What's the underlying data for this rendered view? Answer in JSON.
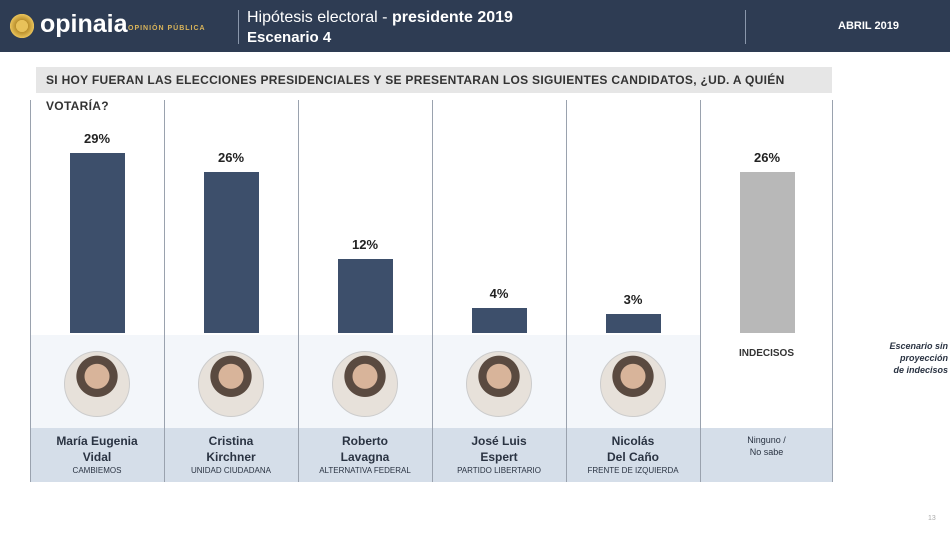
{
  "header": {
    "brand": "opinaia",
    "brand_sub": "OPINIÓN PÚBLICA",
    "title_light": "Hipótesis electoral - ",
    "title_bold": "presidente 2019",
    "subtitle": "Escenario 4",
    "date": "ABRIL 2019"
  },
  "question": "SI HOY FUERAN LAS ELECCIONES PRESIDENCIALES Y SE PRESENTARAN LOS SIGUIENTES CANDIDATOS, ¿UD. A QUIÉN VOTARÍA?",
  "chart_data": {
    "type": "bar",
    "title": "SI HOY FUERAN LAS ELECCIONES PRESIDENCIALES Y SE PRESENTARAN LOS SIGUIENTES CANDIDATOS, ¿UD. A QUIÉN VOTARÍA?",
    "categories": [
      "María Eugenia Vidal",
      "Cristina Kirchner",
      "Roberto Lavagna",
      "José Luis Espert",
      "Nicolás Del Caño",
      "Indecisos"
    ],
    "values": [
      29,
      26,
      12,
      4,
      3,
      26
    ],
    "unit": "%",
    "ylim": [
      0,
      30
    ],
    "labels": [
      "29%",
      "26%",
      "12%",
      "4%",
      "3%",
      "26%"
    ],
    "colors": [
      "#3d4f6b",
      "#3d4f6b",
      "#3d4f6b",
      "#3d4f6b",
      "#3d4f6b",
      "#b8b8b8"
    ]
  },
  "candidates": [
    {
      "first": "María Eugenia",
      "last": "Vidal",
      "party": "CAMBIEMOS"
    },
    {
      "first": "Cristina",
      "last": "Kirchner",
      "party": "UNIDAD CIUDADANA"
    },
    {
      "first": "Roberto",
      "last": "Lavagna",
      "party": "ALTERNATIVA FEDERAL"
    },
    {
      "first": "José Luis",
      "last": "Espert",
      "party": "PARTIDO LIBERTARIO"
    },
    {
      "first": "Nicolás",
      "last": "Del Caño",
      "party": "FRENTE DE IZQUIERDA"
    }
  ],
  "undecided": {
    "label": "INDECISOS",
    "line1": "Ninguno /",
    "line2": "No sabe"
  },
  "note": {
    "l1": "Escenario sin",
    "l2": "proyección",
    "l3": "de indecisos"
  },
  "page_number": "13"
}
